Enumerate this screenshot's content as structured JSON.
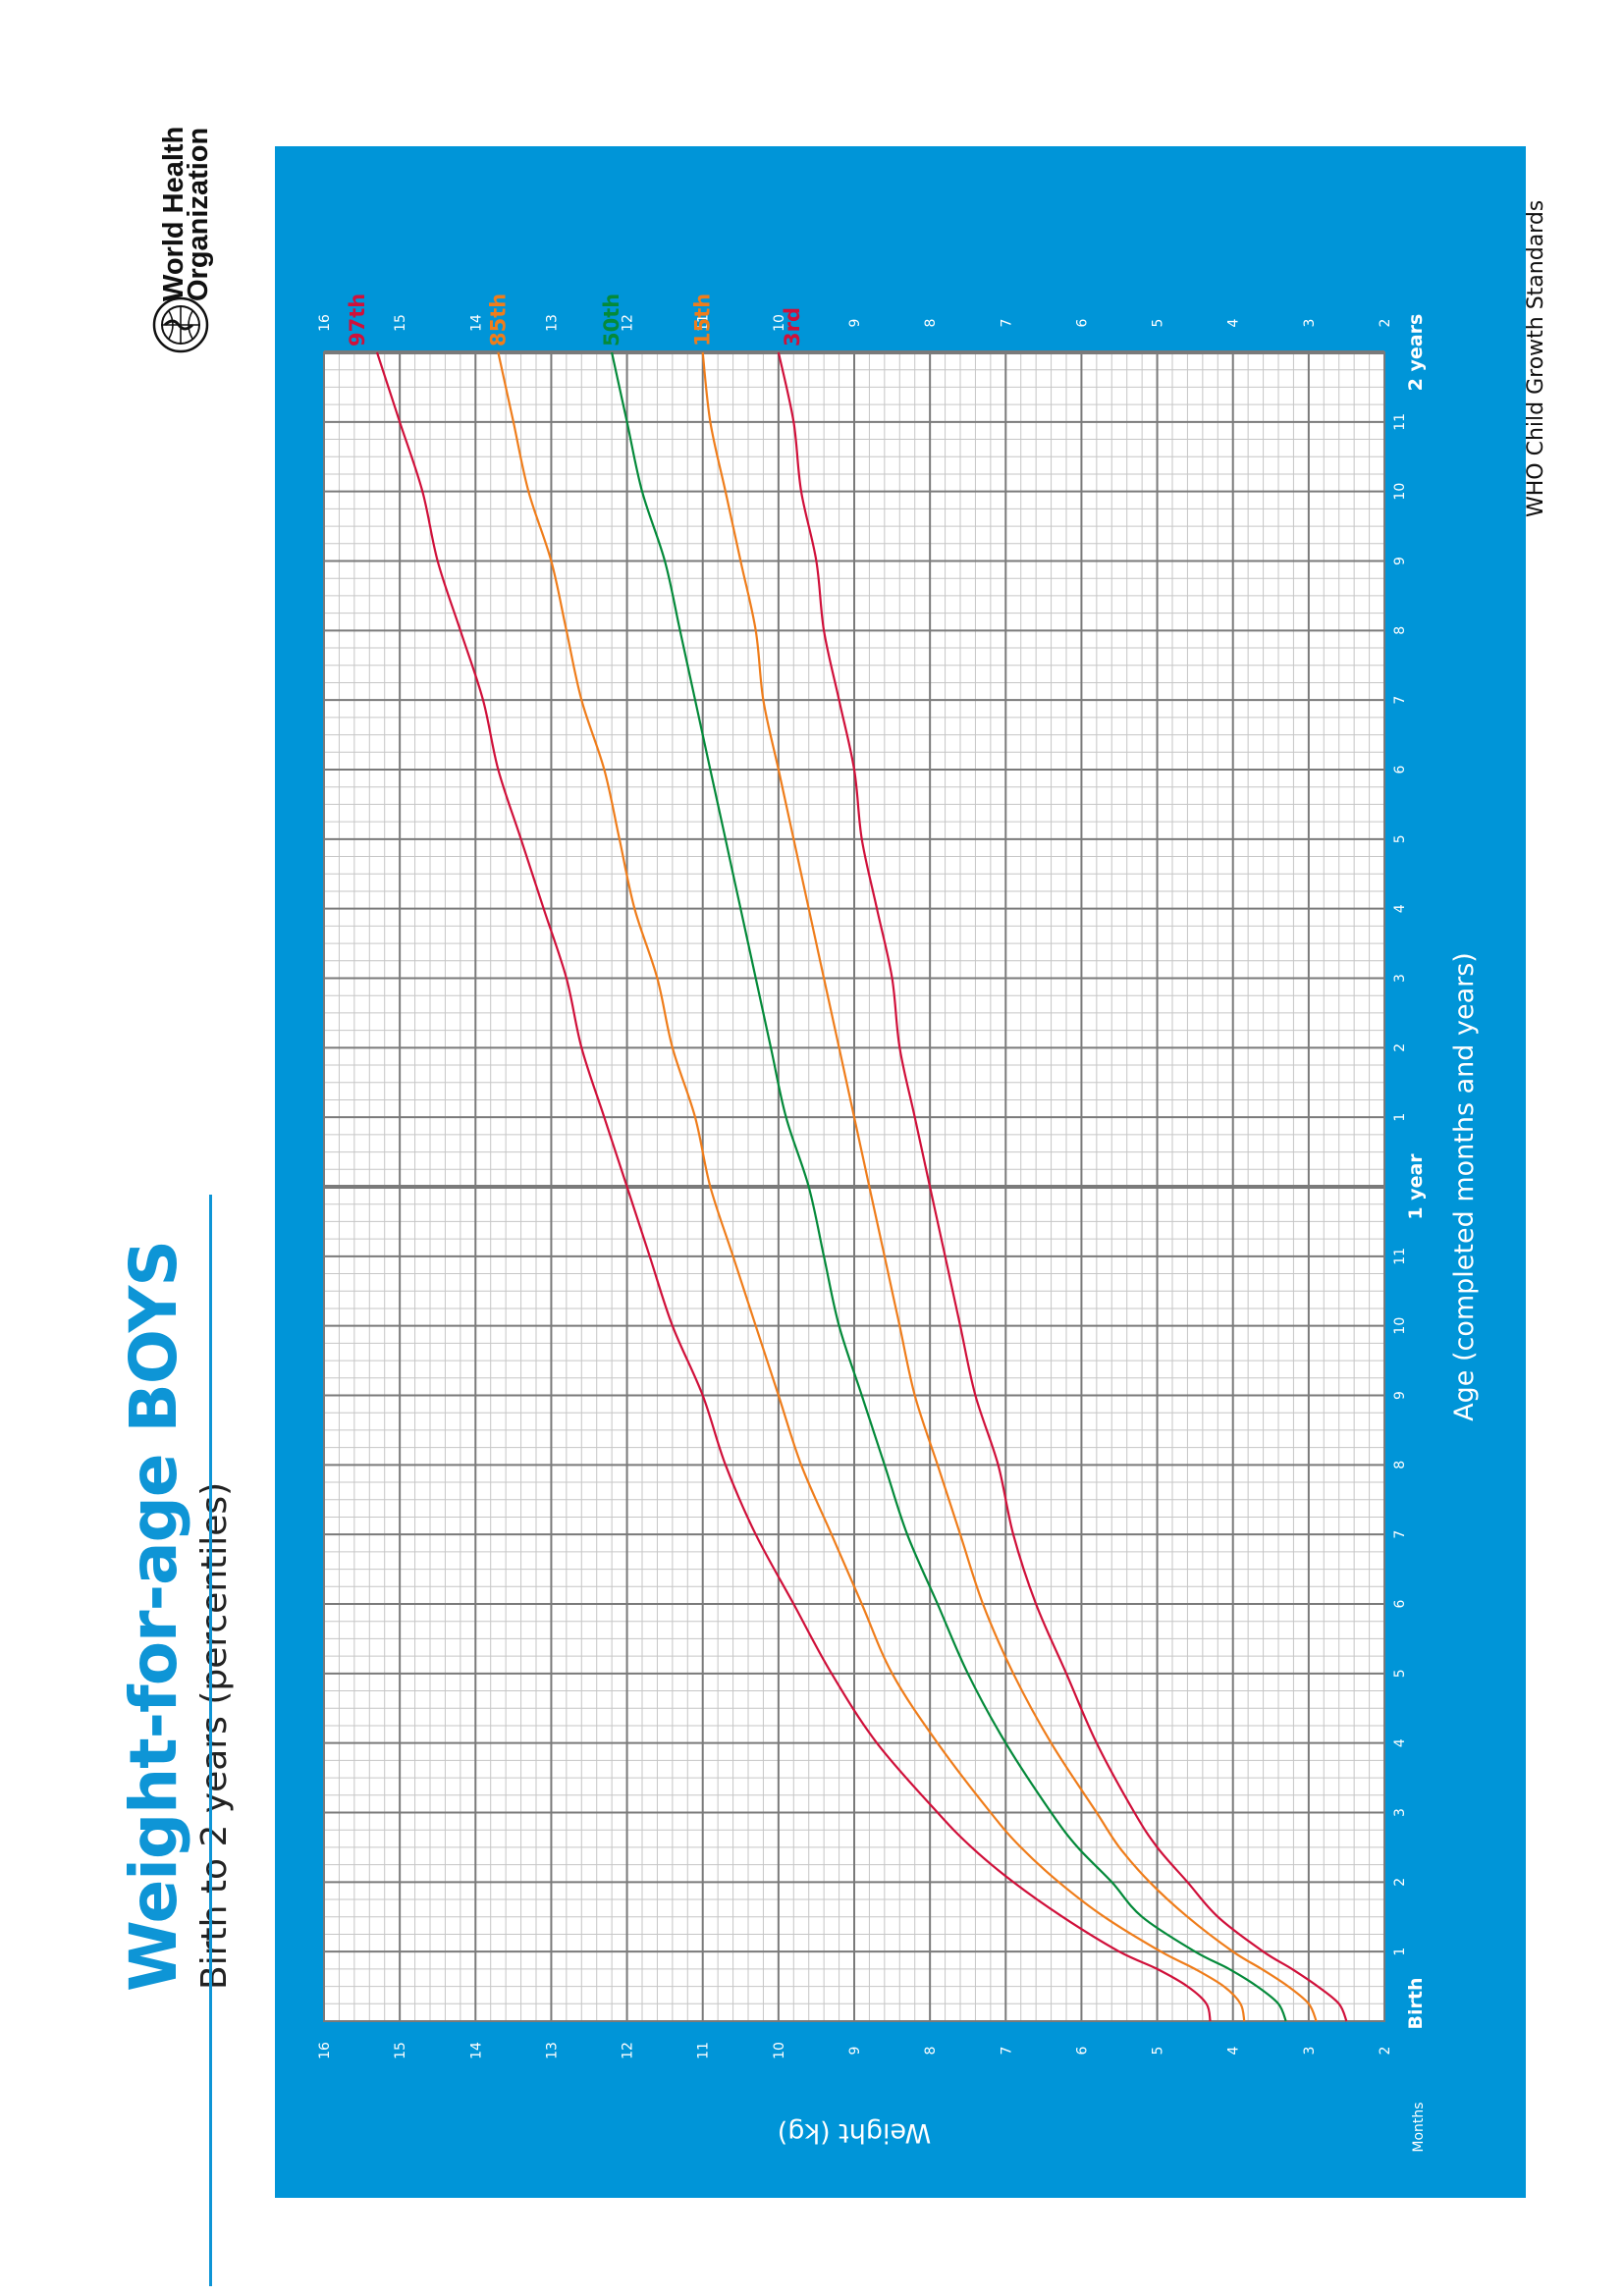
{
  "header": {
    "title_main": "Weight-for-age ",
    "title_accent": "BOYS",
    "subtitle": "Birth to 2 years (percentiles)"
  },
  "logo": {
    "line1": "World Health",
    "line2": "Organization"
  },
  "footer": {
    "text": "WHO Child Growth Standards"
  },
  "colors": {
    "panel": "#0095d8",
    "title": "#0e95d6",
    "p3": "#d0103a",
    "p15": "#ef7d1b",
    "p50": "#048a3a",
    "p85": "#ef7d1b",
    "p97": "#d0103a",
    "grid_major": "#7a7a7a",
    "grid_minor": "#c6c6c6"
  },
  "chart_data": {
    "type": "line",
    "title": "Weight-for-age BOYS",
    "subtitle": "Birth to 2 years (percentiles)",
    "xlabel": "Age (completed months and years)",
    "ylabel": "Weight (kg)",
    "xlim": [
      0,
      24
    ],
    "ylim": [
      2,
      16
    ],
    "x_tick_labels": [
      "Birth",
      "1",
      "2",
      "3",
      "4",
      "5",
      "6",
      "7",
      "8",
      "9",
      "10",
      "11",
      "1 year",
      "1",
      "2",
      "3",
      "4",
      "5",
      "6",
      "7",
      "8",
      "9",
      "10",
      "11",
      "2 years"
    ],
    "x_axis_caption": "Months",
    "y_ticks": [
      2,
      3,
      4,
      5,
      6,
      7,
      8,
      9,
      10,
      11,
      12,
      13,
      14,
      15,
      16
    ],
    "grid": true,
    "x": [
      0,
      0.25,
      0.5,
      0.75,
      1,
      1.5,
      2,
      2.5,
      3,
      4,
      5,
      6,
      7,
      8,
      9,
      10,
      11,
      12,
      13,
      14,
      15,
      16,
      17,
      18,
      19,
      20,
      21,
      22,
      23,
      24
    ],
    "series": [
      {
        "name": "97th",
        "values": [
          4.3,
          4.35,
          4.6,
          5.0,
          5.5,
          6.25,
          6.9,
          7.45,
          7.9,
          8.7,
          9.3,
          9.8,
          10.3,
          10.7,
          11.0,
          11.4,
          11.7,
          12.0,
          12.3,
          12.6,
          12.8,
          13.1,
          13.4,
          13.7,
          13.9,
          14.2,
          14.5,
          14.7,
          15.0,
          15.3
        ]
      },
      {
        "name": "85th",
        "values": [
          3.85,
          3.9,
          4.12,
          4.5,
          4.95,
          5.7,
          6.3,
          6.8,
          7.2,
          7.9,
          8.5,
          8.9,
          9.3,
          9.7,
          10.0,
          10.3,
          10.6,
          10.9,
          11.1,
          11.4,
          11.6,
          11.9,
          12.1,
          12.3,
          12.6,
          12.8,
          13.0,
          13.3,
          13.5,
          13.7
        ]
      },
      {
        "name": "50th",
        "values": [
          3.3,
          3.4,
          3.68,
          4.05,
          4.5,
          5.2,
          5.6,
          6.05,
          6.4,
          7.0,
          7.5,
          7.9,
          8.3,
          8.6,
          8.9,
          9.2,
          9.4,
          9.6,
          9.9,
          10.1,
          10.3,
          10.5,
          10.7,
          10.9,
          11.1,
          11.3,
          11.5,
          11.8,
          12.0,
          12.2
        ]
      },
      {
        "name": "15th",
        "values": [
          2.9,
          3.0,
          3.27,
          3.62,
          4.0,
          4.6,
          5.1,
          5.5,
          5.8,
          6.4,
          6.9,
          7.3,
          7.6,
          7.9,
          8.2,
          8.4,
          8.6,
          8.8,
          9.0,
          9.2,
          9.4,
          9.6,
          9.8,
          10.0,
          10.2,
          10.3,
          10.5,
          10.7,
          10.9,
          11.0
        ]
      },
      {
        "name": "3rd",
        "values": [
          2.5,
          2.6,
          2.88,
          3.22,
          3.6,
          4.2,
          4.6,
          5.0,
          5.3,
          5.8,
          6.2,
          6.6,
          6.9,
          7.1,
          7.4,
          7.6,
          7.8,
          8.0,
          8.2,
          8.4,
          8.5,
          8.7,
          8.9,
          9.0,
          9.2,
          9.4,
          9.5,
          9.7,
          9.8,
          10.0
        ]
      }
    ]
  }
}
